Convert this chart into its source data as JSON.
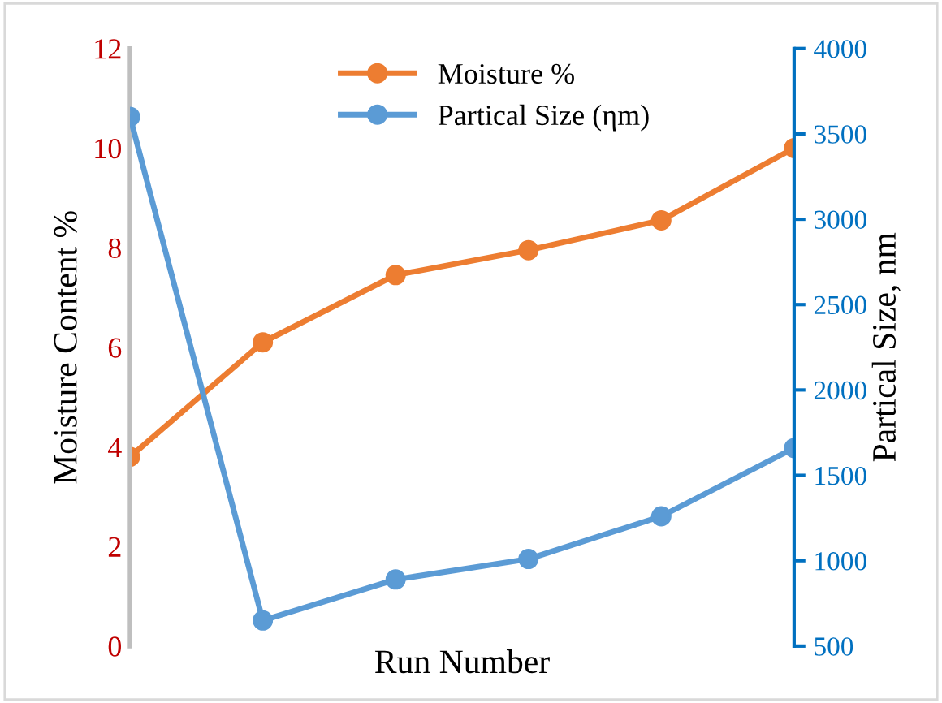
{
  "chart_data": {
    "type": "line",
    "xlabel": "Run Number",
    "ylabel": "Moisture Content %",
    "y2label": "Partical Size, nm",
    "categories": [
      null,
      null,
      null,
      null,
      null,
      null
    ],
    "series": [
      {
        "name": "Moisture %",
        "color": "#ed7d31",
        "values": [
          3.8,
          6.1,
          7.45,
          7.95,
          8.55,
          10.0
        ]
      },
      {
        "name": "Partical Size (ηm)",
        "color": "#5b9bd5",
        "axis": "y2",
        "values": [
          3600,
          650,
          890,
          1010,
          1260,
          1660
        ]
      }
    ],
    "ylim": [
      0,
      12
    ],
    "yticks": [
      0,
      2,
      4,
      6,
      8,
      10,
      12
    ],
    "y2lim": [
      500,
      4000
    ],
    "y2ticks": [
      500,
      1000,
      1500,
      2000,
      2500,
      3000,
      3500,
      4000
    ],
    "grid": false,
    "legend": "top",
    "marker": "circle",
    "line_style": "solid"
  }
}
